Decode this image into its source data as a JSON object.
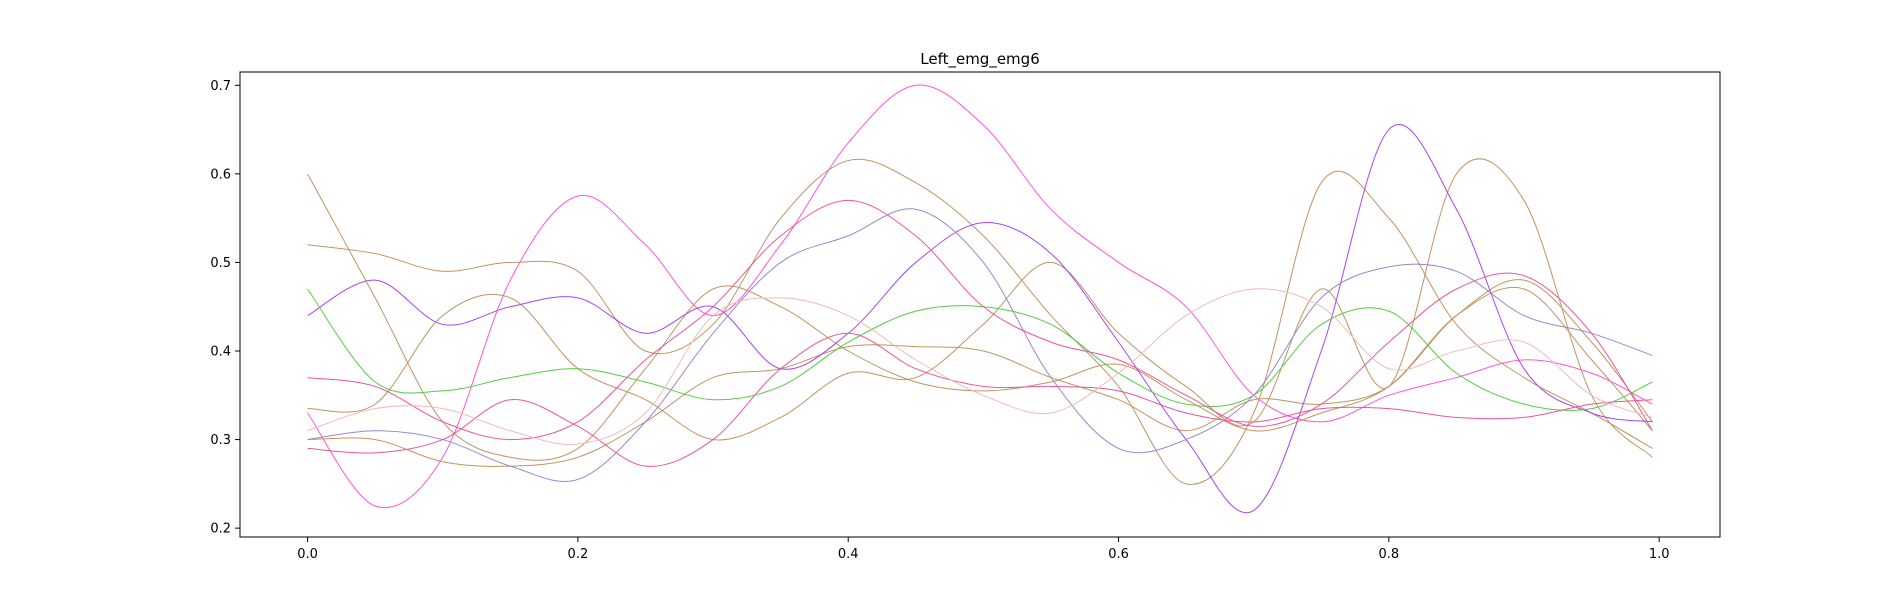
{
  "chart_data": {
    "type": "line",
    "title": "Left_emg_emg6",
    "xlabel": "",
    "ylabel": "",
    "xlim": [
      -0.05,
      1.045
    ],
    "ylim": [
      0.19,
      0.715
    ],
    "x_ticks": [
      0.0,
      0.2,
      0.4,
      0.6,
      0.8,
      1.0
    ],
    "x_tick_labels": [
      "0.0",
      "0.2",
      "0.4",
      "0.6",
      "0.8",
      "1.0"
    ],
    "y_ticks": [
      0.2,
      0.3,
      0.4,
      0.5,
      0.6,
      0.7
    ],
    "y_tick_labels": [
      "0.2",
      "0.3",
      "0.4",
      "0.5",
      "0.6",
      "0.7"
    ],
    "grid": false,
    "legend": "none",
    "x": [
      0.0,
      0.05,
      0.1,
      0.15,
      0.2,
      0.25,
      0.3,
      0.35,
      0.4,
      0.45,
      0.5,
      0.55,
      0.6,
      0.65,
      0.7,
      0.75,
      0.8,
      0.85,
      0.9,
      0.95,
      0.995
    ],
    "series": [
      {
        "color": "#ff55dd",
        "values": [
          0.33,
          0.225,
          0.28,
          0.48,
          0.575,
          0.52,
          0.44,
          0.52,
          0.635,
          0.7,
          0.655,
          0.56,
          0.5,
          0.45,
          0.35,
          0.32,
          0.35,
          0.37,
          0.39,
          0.375,
          0.34
        ]
      },
      {
        "color": "#c09560",
        "values": [
          0.6,
          0.46,
          0.32,
          0.28,
          0.29,
          0.38,
          0.47,
          0.45,
          0.4,
          0.365,
          0.355,
          0.365,
          0.385,
          0.345,
          0.31,
          0.33,
          0.36,
          0.44,
          0.47,
          0.39,
          0.31
        ]
      },
      {
        "color": "#c09560",
        "values": [
          0.52,
          0.51,
          0.49,
          0.5,
          0.49,
          0.4,
          0.43,
          0.55,
          0.615,
          0.59,
          0.53,
          0.44,
          0.36,
          0.25,
          0.33,
          0.59,
          0.55,
          0.43,
          0.37,
          0.33,
          0.29
        ]
      },
      {
        "color": "#c09560",
        "values": [
          0.335,
          0.34,
          0.44,
          0.46,
          0.38,
          0.345,
          0.3,
          0.325,
          0.375,
          0.37,
          0.43,
          0.5,
          0.42,
          0.36,
          0.32,
          0.47,
          0.36,
          0.6,
          0.57,
          0.35,
          0.28
        ]
      },
      {
        "color": "#c09560",
        "values": [
          0.3,
          0.3,
          0.275,
          0.27,
          0.28,
          0.32,
          0.37,
          0.38,
          0.405,
          0.405,
          0.4,
          0.37,
          0.345,
          0.31,
          0.345,
          0.34,
          0.36,
          0.44,
          0.48,
          0.41,
          0.32
        ]
      },
      {
        "color": "#aa44ee",
        "values": [
          0.44,
          0.48,
          0.43,
          0.45,
          0.46,
          0.42,
          0.45,
          0.38,
          0.42,
          0.5,
          0.545,
          0.51,
          0.41,
          0.3,
          0.22,
          0.4,
          0.65,
          0.56,
          0.38,
          0.33,
          0.32
        ]
      },
      {
        "color": "#9988cc",
        "values": [
          0.3,
          0.31,
          0.3,
          0.27,
          0.255,
          0.32,
          0.42,
          0.5,
          0.53,
          0.56,
          0.5,
          0.37,
          0.29,
          0.3,
          0.35,
          0.46,
          0.495,
          0.49,
          0.44,
          0.42,
          0.395
        ]
      },
      {
        "color": "#55cc44",
        "values": [
          0.47,
          0.365,
          0.355,
          0.37,
          0.38,
          0.365,
          0.345,
          0.36,
          0.41,
          0.445,
          0.45,
          0.43,
          0.375,
          0.34,
          0.35,
          0.43,
          0.445,
          0.375,
          0.34,
          0.335,
          0.365
        ]
      },
      {
        "color": "#ee5599",
        "values": [
          0.37,
          0.36,
          0.32,
          0.3,
          0.32,
          0.39,
          0.45,
          0.53,
          0.57,
          0.53,
          0.45,
          0.41,
          0.39,
          0.35,
          0.315,
          0.34,
          0.41,
          0.47,
          0.485,
          0.42,
          0.31
        ]
      },
      {
        "color": "#ee5599",
        "values": [
          0.29,
          0.285,
          0.3,
          0.345,
          0.315,
          0.27,
          0.3,
          0.38,
          0.42,
          0.38,
          0.36,
          0.36,
          0.355,
          0.33,
          0.32,
          0.335,
          0.335,
          0.325,
          0.325,
          0.34,
          0.345
        ]
      },
      {
        "color": "#eebbbb",
        "values": [
          0.31,
          0.335,
          0.335,
          0.31,
          0.295,
          0.33,
          0.44,
          0.46,
          0.44,
          0.39,
          0.35,
          0.33,
          0.375,
          0.44,
          0.47,
          0.45,
          0.38,
          0.4,
          0.41,
          0.35,
          0.325
        ]
      }
    ]
  }
}
